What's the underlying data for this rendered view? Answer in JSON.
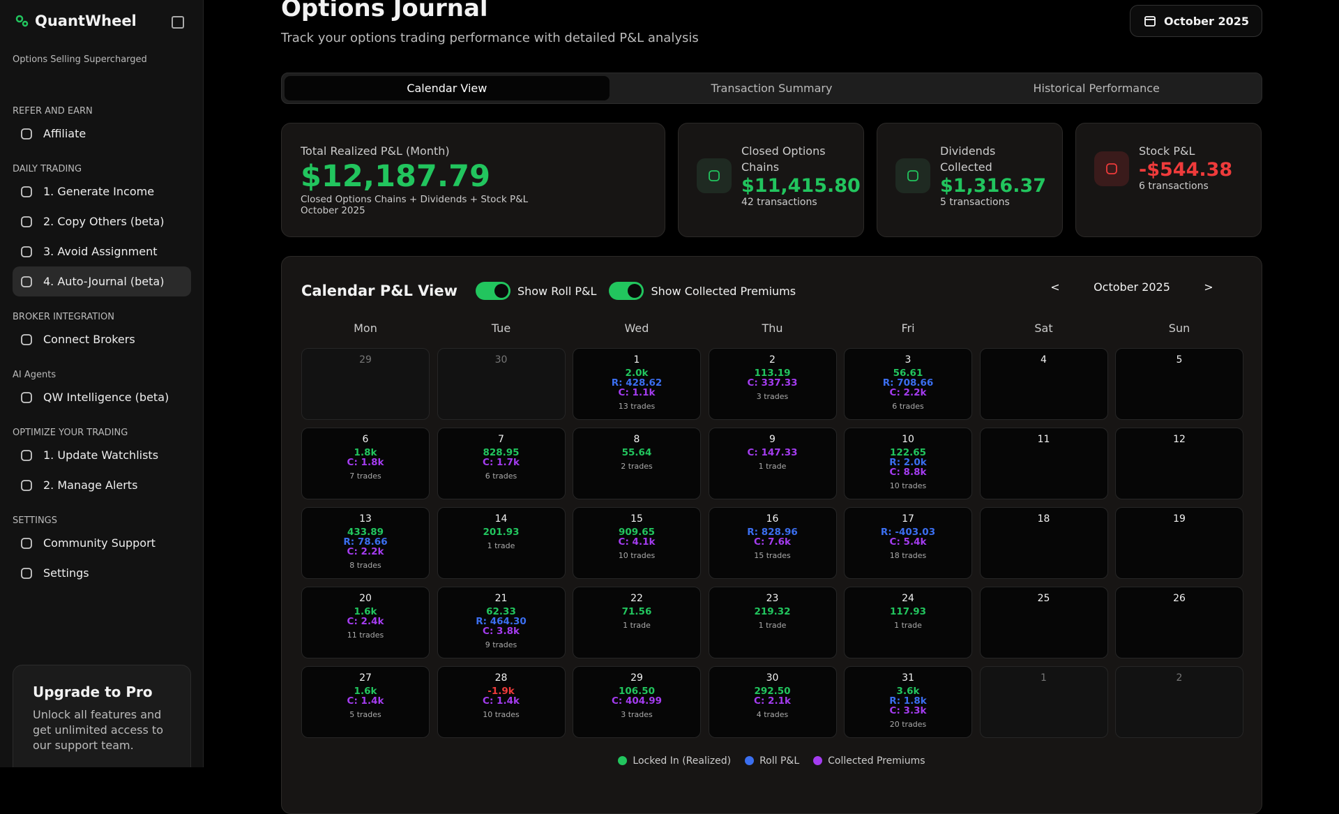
{
  "sidebar": {
    "brand": "QuantWheel",
    "tagline": "Options Selling Supercharged",
    "sections": [
      {
        "title": "REFER AND EARN",
        "items": [
          {
            "label": "Affiliate",
            "active": false
          }
        ]
      },
      {
        "title": "DAILY TRADING",
        "items": [
          {
            "label": "1. Generate Income",
            "active": false
          },
          {
            "label": "2. Copy Others (beta)",
            "active": false
          },
          {
            "label": "3. Avoid Assignment",
            "active": false
          },
          {
            "label": "4. Auto-Journal (beta)",
            "active": true
          }
        ]
      },
      {
        "title": "BROKER INTEGRATION",
        "items": [
          {
            "label": "Connect Brokers",
            "active": false
          }
        ]
      },
      {
        "title": "AI Agents",
        "items": [
          {
            "label": "QW Intelligence (beta)",
            "active": false
          }
        ]
      },
      {
        "title": "OPTIMIZE YOUR TRADING",
        "items": [
          {
            "label": "1. Update Watchlists",
            "active": false
          },
          {
            "label": "2. Manage Alerts",
            "active": false
          }
        ]
      },
      {
        "title": "SETTINGS",
        "items": [
          {
            "label": "Community Support",
            "active": false
          },
          {
            "label": "Settings",
            "active": false
          }
        ]
      }
    ],
    "upgrade": {
      "title": "Upgrade to Pro",
      "text": "Unlock all features and get unlimited access to our support team."
    }
  },
  "header": {
    "title": "Options Journal",
    "subtitle": "Track your options trading performance with detailed P&L analysis",
    "month_button": "October 2025"
  },
  "tabs": [
    {
      "label": "Calendar View",
      "active": true
    },
    {
      "label": "Transaction Summary",
      "active": false
    },
    {
      "label": "Historical Performance",
      "active": false
    }
  ],
  "cards": [
    {
      "label": "Total Realized P&L (Month)",
      "value": "$12,187.79",
      "tone": "positive",
      "notes": [
        "Closed Options Chains + Dividends + Stock P&L",
        "October 2025"
      ]
    },
    {
      "label": "Closed Options Chains",
      "value": "$11,415.80",
      "tone": "positive",
      "notes": [
        "42 transactions"
      ]
    },
    {
      "label": "Dividends Collected",
      "value": "$1,316.37",
      "tone": "positive",
      "notes": [
        "5 transactions"
      ]
    },
    {
      "label": "Stock P&L",
      "value": "-$544.38",
      "tone": "negative",
      "notes": [
        "6 transactions"
      ]
    }
  ],
  "calendar": {
    "title": "Calendar P&L View",
    "toggles": [
      {
        "label": "Show Roll P&L",
        "on": true
      },
      {
        "label": "Show Collected Premiums",
        "on": true
      }
    ],
    "prev": "<",
    "month": "October 2025",
    "next": ">",
    "weekdays": [
      "Mon",
      "Tue",
      "Wed",
      "Thu",
      "Fri",
      "Sat",
      "Sun"
    ],
    "days": [
      {
        "day": "29",
        "outside": true
      },
      {
        "day": "30",
        "outside": true
      },
      {
        "day": "1",
        "lines": [
          {
            "kind": "realized",
            "text": "2.0k"
          },
          {
            "kind": "roll",
            "text": "R: 428.62"
          },
          {
            "kind": "collected",
            "text": "C: 1.1k"
          }
        ],
        "trades": "13 trades"
      },
      {
        "day": "2",
        "lines": [
          {
            "kind": "realized",
            "text": "113.19"
          },
          {
            "kind": "collected",
            "text": "C: 337.33"
          }
        ],
        "trades": "3 trades"
      },
      {
        "day": "3",
        "lines": [
          {
            "kind": "realized",
            "text": "56.61"
          },
          {
            "kind": "roll",
            "text": "R: 708.66"
          },
          {
            "kind": "collected",
            "text": "C: 2.2k"
          }
        ],
        "trades": "6 trades"
      },
      {
        "day": "4"
      },
      {
        "day": "5"
      },
      {
        "day": "6",
        "lines": [
          {
            "kind": "realized",
            "text": "1.8k"
          },
          {
            "kind": "collected",
            "text": "C: 1.8k"
          }
        ],
        "trades": "7 trades"
      },
      {
        "day": "7",
        "lines": [
          {
            "kind": "realized",
            "text": "828.95"
          },
          {
            "kind": "collected",
            "text": "C: 1.7k"
          }
        ],
        "trades": "6 trades"
      },
      {
        "day": "8",
        "lines": [
          {
            "kind": "realized",
            "text": "55.64"
          }
        ],
        "trades": "2 trades"
      },
      {
        "day": "9",
        "lines": [
          {
            "kind": "collected",
            "text": "C: 147.33"
          }
        ],
        "trades": "1 trade"
      },
      {
        "day": "10",
        "lines": [
          {
            "kind": "realized",
            "text": "122.65"
          },
          {
            "kind": "roll",
            "text": "R: 2.0k"
          },
          {
            "kind": "collected",
            "text": "C: 8.8k"
          }
        ],
        "trades": "10 trades"
      },
      {
        "day": "11"
      },
      {
        "day": "12"
      },
      {
        "day": "13",
        "lines": [
          {
            "kind": "realized",
            "text": "433.89"
          },
          {
            "kind": "roll",
            "text": "R: 78.66"
          },
          {
            "kind": "collected",
            "text": "C: 2.2k"
          }
        ],
        "trades": "8 trades"
      },
      {
        "day": "14",
        "lines": [
          {
            "kind": "realized",
            "text": "201.93"
          }
        ],
        "trades": "1 trade"
      },
      {
        "day": "15",
        "lines": [
          {
            "kind": "realized",
            "text": "909.65"
          },
          {
            "kind": "collected",
            "text": "C: 4.1k"
          }
        ],
        "trades": "10 trades"
      },
      {
        "day": "16",
        "lines": [
          {
            "kind": "roll",
            "text": "R: 828.96"
          },
          {
            "kind": "collected",
            "text": "C: 7.6k"
          }
        ],
        "trades": "15 trades"
      },
      {
        "day": "17",
        "lines": [
          {
            "kind": "roll",
            "text": "R: -403.03"
          },
          {
            "kind": "collected",
            "text": "C: 5.4k"
          }
        ],
        "trades": "18 trades"
      },
      {
        "day": "18"
      },
      {
        "day": "19"
      },
      {
        "day": "20",
        "lines": [
          {
            "kind": "realized",
            "text": "1.6k"
          },
          {
            "kind": "collected",
            "text": "C: 2.4k"
          }
        ],
        "trades": "11 trades"
      },
      {
        "day": "21",
        "lines": [
          {
            "kind": "realized",
            "text": "62.33"
          },
          {
            "kind": "roll",
            "text": "R: 464.30"
          },
          {
            "kind": "collected",
            "text": "C: 3.8k"
          }
        ],
        "trades": "9 trades"
      },
      {
        "day": "22",
        "lines": [
          {
            "kind": "realized",
            "text": "71.56"
          }
        ],
        "trades": "1 trade"
      },
      {
        "day": "23",
        "lines": [
          {
            "kind": "realized",
            "text": "219.32"
          }
        ],
        "trades": "1 trade"
      },
      {
        "day": "24",
        "lines": [
          {
            "kind": "realized",
            "text": "117.93"
          }
        ],
        "trades": "1 trade"
      },
      {
        "day": "25"
      },
      {
        "day": "26"
      },
      {
        "day": "27",
        "lines": [
          {
            "kind": "realized",
            "text": "1.6k"
          },
          {
            "kind": "collected",
            "text": "C: 1.4k"
          }
        ],
        "trades": "5 trades"
      },
      {
        "day": "28",
        "lines": [
          {
            "kind": "loss",
            "text": "-1.9k"
          },
          {
            "kind": "collected",
            "text": "C: 1.4k"
          }
        ],
        "trades": "10 trades"
      },
      {
        "day": "29",
        "lines": [
          {
            "kind": "realized",
            "text": "106.50"
          },
          {
            "kind": "collected",
            "text": "C: 404.99"
          }
        ],
        "trades": "3 trades"
      },
      {
        "day": "30",
        "lines": [
          {
            "kind": "realized",
            "text": "292.50"
          },
          {
            "kind": "collected",
            "text": "C: 2.1k"
          }
        ],
        "trades": "4 trades"
      },
      {
        "day": "31",
        "lines": [
          {
            "kind": "realized",
            "text": "3.6k"
          },
          {
            "kind": "roll",
            "text": "R: 1.8k"
          },
          {
            "kind": "collected",
            "text": "C: 3.3k"
          }
        ],
        "trades": "20 trades"
      },
      {
        "day": "1",
        "outside": true
      },
      {
        "day": "2",
        "outside": true
      }
    ],
    "legend": [
      {
        "kind": "realized",
        "label": "Locked In (Realized)"
      },
      {
        "kind": "roll",
        "label": "Roll P&L"
      },
      {
        "kind": "collected",
        "label": "Collected Premiums"
      }
    ]
  }
}
